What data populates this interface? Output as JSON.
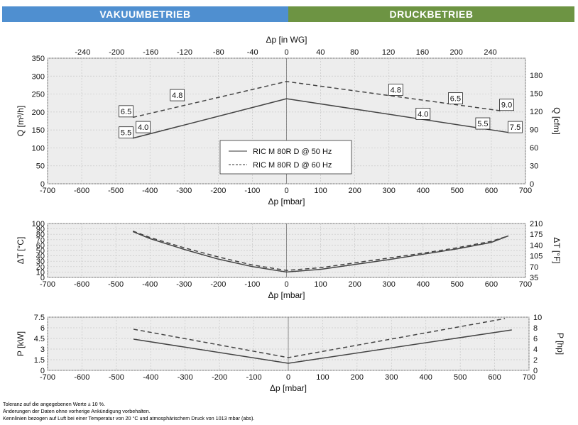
{
  "banners": {
    "vacuum": {
      "label": "VAKUUMBETRIEB",
      "color": "#4f8fd0"
    },
    "pressure": {
      "label": "DRUCKBETRIEB",
      "color": "#6d9443"
    }
  },
  "legend": [
    {
      "label": "RIC M 80R D @ 50 Hz",
      "style": "solid"
    },
    {
      "label": "RIC M 80R D @ 60 Hz",
      "style": "dashed"
    }
  ],
  "chart_data": [
    {
      "type": "line",
      "x_label": "Δp [mbar]",
      "top_axis_label": "Δp [in WG]",
      "y_label_left": "Q [m³/h]",
      "y_label_right": "Q [cfm]",
      "xlim": [
        -700,
        700
      ],
      "ylim": [
        0,
        350
      ],
      "x_ticks": [
        -700,
        -600,
        -500,
        -400,
        -300,
        -200,
        -100,
        0,
        100,
        200,
        300,
        400,
        500,
        600,
        700
      ],
      "y_ticks": [
        0,
        50,
        100,
        150,
        200,
        250,
        300,
        350
      ],
      "top_ticks": [
        -240,
        -200,
        -160,
        -120,
        -80,
        -40,
        0,
        40,
        80,
        120,
        160,
        200,
        240
      ],
      "right_ticks": [
        0,
        30,
        60,
        90,
        120,
        150,
        180
      ],
      "series": [
        {
          "name": "RIC M 80R D @ 50 Hz",
          "x": [
            -450,
            0,
            650
          ],
          "y": [
            127,
            237,
            143
          ]
        },
        {
          "name": "RIC M 80R D @ 60 Hz",
          "x": [
            -450,
            0,
            630
          ],
          "y": [
            185,
            285,
            203
          ]
        }
      ],
      "annotations": [
        {
          "text": "6.5",
          "x": -470,
          "y": 202
        },
        {
          "text": "4.8",
          "x": -320,
          "y": 247
        },
        {
          "text": "5.5",
          "x": -470,
          "y": 143
        },
        {
          "text": "4.0",
          "x": -420,
          "y": 158
        },
        {
          "text": "4.8",
          "x": 320,
          "y": 262
        },
        {
          "text": "6.5",
          "x": 495,
          "y": 238
        },
        {
          "text": "9.0",
          "x": 645,
          "y": 220
        },
        {
          "text": "4.0",
          "x": 400,
          "y": 195
        },
        {
          "text": "5.5",
          "x": 575,
          "y": 168
        },
        {
          "text": "7.5",
          "x": 670,
          "y": 158
        }
      ]
    },
    {
      "type": "line",
      "x_label": "Δp [mbar]",
      "y_label_left": "ΔT [°C]",
      "y_label_right": "ΔT [°F]",
      "xlim": [
        -700,
        700
      ],
      "ylim": [
        0,
        100
      ],
      "x_ticks": [
        -700,
        -600,
        -500,
        -400,
        -300,
        -200,
        -100,
        0,
        100,
        200,
        300,
        400,
        500,
        600,
        700
      ],
      "y_ticks": [
        0,
        10,
        20,
        30,
        40,
        50,
        60,
        70,
        80,
        90,
        100
      ],
      "right_ticks": [
        35,
        70,
        105,
        140,
        175,
        210
      ],
      "series": [
        {
          "name": "RIC M 80R D @ 50 Hz",
          "x": [
            -450,
            -400,
            -300,
            -200,
            -100,
            0,
            100,
            200,
            300,
            400,
            500,
            600,
            650
          ],
          "y": [
            85,
            72,
            52,
            34,
            20,
            10,
            15,
            24,
            33,
            43,
            53,
            65,
            77
          ]
        },
        {
          "name": "RIC M 80R D @ 60 Hz",
          "x": [
            -450,
            -400,
            -300,
            -200,
            -100,
            0,
            100,
            200,
            300,
            400,
            500,
            600,
            650
          ],
          "y": [
            86,
            74,
            55,
            38,
            23,
            13,
            18,
            27,
            36,
            45,
            55,
            67,
            77
          ]
        }
      ]
    },
    {
      "type": "line",
      "x_label": "Δp [mbar]",
      "y_label_left": "P [kW]",
      "y_label_right": "P [hp]",
      "xlim": [
        -700,
        700
      ],
      "ylim": [
        0,
        7.5
      ],
      "x_ticks": [
        -700,
        -600,
        -500,
        -400,
        -300,
        -200,
        -100,
        0,
        100,
        200,
        300,
        400,
        500,
        600,
        700
      ],
      "y_ticks": [
        0,
        1.5,
        3,
        4.5,
        6,
        7.5
      ],
      "y_tick_labels": [
        "0",
        "1.5",
        "3",
        "4.5",
        "6",
        "7.5"
      ],
      "right_ticks": [
        0,
        2,
        4,
        6,
        8,
        10
      ],
      "series": [
        {
          "name": "RIC M 80R D @ 50 Hz",
          "x": [
            -450,
            0,
            650
          ],
          "y": [
            4.4,
            1.0,
            5.7
          ]
        },
        {
          "name": "RIC M 80R D @ 60 Hz",
          "x": [
            -450,
            0,
            630
          ],
          "y": [
            5.8,
            1.8,
            7.3
          ]
        }
      ]
    }
  ],
  "footnotes": [
    "Toleranz auf die angegebenen Werte ± 10 %.",
    "Änderungen der Daten ohne vorherige Ankündigung vorbehalten.",
    "Kennlinien bezogen auf Luft bei einer Temperatur von 20 °C und atmosphärischem Druck von 1013 mbar (abs)."
  ]
}
